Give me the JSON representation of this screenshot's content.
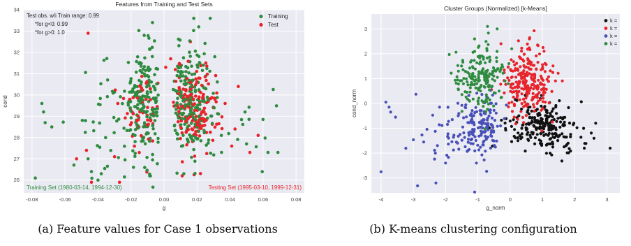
{
  "captions": {
    "a": "(a) Feature values for Case 1 observations",
    "b": "(b) K-means clustering configuration"
  },
  "chart_data": [
    {
      "type": "scatter",
      "title": "Features from Training and Test Sets",
      "xlabel": "g",
      "ylabel": "cond",
      "xlim": [
        -0.085,
        0.085
      ],
      "ylim": [
        25.4,
        34.0
      ],
      "xticks": [
        "-0.08",
        "-0.06",
        "-0.04",
        "-0.02",
        "0.00",
        "0.02",
        "0.04",
        "0.06",
        "0.08"
      ],
      "yticks": [
        "26",
        "27",
        "28",
        "29",
        "30",
        "31",
        "32",
        "33",
        "34"
      ],
      "grid": true,
      "legend_position": "top-right",
      "series": [
        {
          "name": "Training",
          "color": "#2e8b3f",
          "clusters": [
            {
              "cx": -0.012,
              "cy": 29.6,
              "sx": 0.006,
              "sy": 1.25,
              "n": 200
            },
            {
              "cx": 0.015,
              "cy": 29.7,
              "sx": 0.008,
              "sy": 1.3,
              "n": 230
            },
            {
              "cx": -0.035,
              "cy": 28.8,
              "sx": 0.012,
              "sy": 1.3,
              "n": 40
            },
            {
              "cx": 0.04,
              "cy": 28.6,
              "sx": 0.012,
              "sy": 1.0,
              "n": 25
            }
          ],
          "points": [
            [
              -0.074,
              29.6
            ],
            [
              -0.073,
              29.2
            ],
            [
              -0.072,
              28.7
            ],
            [
              -0.068,
              28.5
            ],
            [
              -0.078,
              26.1
            ],
            [
              -0.044,
              26.4
            ],
            [
              -0.04,
              26.0
            ],
            [
              -0.038,
              26.3
            ],
            [
              -0.012,
              32.8
            ],
            [
              -0.007,
              33.4
            ],
            [
              0.018,
              33.6
            ],
            [
              0.021,
              33.2
            ],
            [
              0.028,
              33.6
            ],
            [
              0.063,
              27.3
            ],
            [
              0.069,
              27.3
            ],
            [
              0.05,
              27.7
            ],
            [
              0.012,
              26.3
            ],
            [
              -0.046,
              27.0
            ]
          ]
        },
        {
          "name": "Test",
          "color": "#e8232a",
          "clusters": [
            {
              "cx": 0.018,
              "cy": 29.4,
              "sx": 0.008,
              "sy": 1.05,
              "n": 170
            },
            {
              "cx": -0.012,
              "cy": 29.4,
              "sx": 0.006,
              "sy": 0.9,
              "n": 55
            }
          ],
          "points": [
            [
              -0.046,
              32.9
            ],
            [
              -0.047,
              27.4
            ],
            [
              -0.044,
              25.9
            ],
            [
              -0.03,
              27.1
            ],
            [
              -0.027,
              25.9
            ],
            [
              -0.028,
              29.6
            ],
            [
              -0.053,
              27.0
            ],
            [
              0.001,
              31.3
            ],
            [
              0.004,
              31.7
            ],
            [
              0.052,
              27.3
            ],
            [
              0.057,
              28.1
            ],
            [
              0.043,
              28.4
            ],
            [
              0.045,
              30.4
            ],
            [
              0.041,
              27.6
            ],
            [
              0.011,
              26.2
            ],
            [
              0.016,
              32.5
            ],
            [
              0.037,
              29.6
            ]
          ]
        }
      ],
      "annotations": {
        "top_left": [
          "Test obs. w/i Train range: 0.99",
          "*for g<0: 0.99",
          "*for g>0: 1.0"
        ],
        "training_set": "Training Set (1980-03-14, 1994-12-30)",
        "testing_set": "Testing Set (1995-03-10, 1999-12-31)"
      },
      "colors": {
        "plot_bg": "#eaeaf2",
        "grid": "#ffffff",
        "training_text": "#2e8b3f",
        "testing_text": "#e8232a"
      }
    },
    {
      "type": "scatter",
      "title": "Cluster Groups (Normalized) [k-Means]",
      "xlabel": "g_norm",
      "ylabel": "cond_norm",
      "xlim": [
        -4.3,
        3.4
      ],
      "ylim": [
        -3.6,
        3.6
      ],
      "xticks": [
        "-4",
        "-3",
        "-2",
        "-1",
        "0",
        "1",
        "2",
        "3"
      ],
      "yticks": [
        "-3",
        "-2",
        "-1",
        "0",
        "1",
        "2",
        "3"
      ],
      "grid": true,
      "legend_position": "top-right",
      "series": [
        {
          "name": "k =",
          "color": "#111111",
          "clusters": [
            {
              "cx": 0.9,
              "cy": -0.8,
              "sx": 0.55,
              "sy": 0.45,
              "n": 200
            },
            {
              "cx": 1.7,
              "cy": -1.5,
              "sx": 0.5,
              "sy": 0.35,
              "n": 30
            }
          ],
          "points": [
            [
              3.1,
              -1.8
            ],
            [
              2.6,
              -1.4
            ],
            [
              2.3,
              -1.8
            ]
          ]
        },
        {
          "name": "k =",
          "color": "#e8232a",
          "clusters": [
            {
              "cx": 0.55,
              "cy": 0.95,
              "sx": 0.38,
              "sy": 0.7,
              "n": 240
            }
          ],
          "points": [
            [
              0.6,
              2.6
            ],
            [
              0.85,
              2.35
            ],
            [
              1.05,
              2.1
            ]
          ]
        },
        {
          "name": "k =",
          "color": "#4850b8",
          "clusters": [
            {
              "cx": -0.95,
              "cy": -0.9,
              "sx": 0.4,
              "sy": 0.6,
              "n": 150
            },
            {
              "cx": -2.3,
              "cy": -1.3,
              "sx": 0.6,
              "sy": 0.7,
              "n": 35
            }
          ],
          "points": [
            [
              -4.0,
              -2.75
            ],
            [
              -3.85,
              0.05
            ],
            [
              -3.75,
              -0.15
            ],
            [
              -3.7,
              -0.35
            ],
            [
              -3.55,
              -0.55
            ],
            [
              -2.3,
              -3.2
            ],
            [
              -2.0,
              -2.4
            ]
          ]
        },
        {
          "name": "k =",
          "color": "#2e8b3f",
          "clusters": [
            {
              "cx": -0.9,
              "cy": 1.0,
              "sx": 0.38,
              "sy": 0.6,
              "n": 180
            }
          ],
          "points": [
            [
              -1.1,
              2.6
            ],
            [
              -0.7,
              3.1
            ],
            [
              -0.4,
              3.0
            ],
            [
              0.05,
              2.2
            ],
            [
              -1.6,
              1.3
            ]
          ]
        }
      ],
      "colors": {
        "plot_bg": "#eaeaf2",
        "grid": "#ffffff"
      }
    }
  ]
}
